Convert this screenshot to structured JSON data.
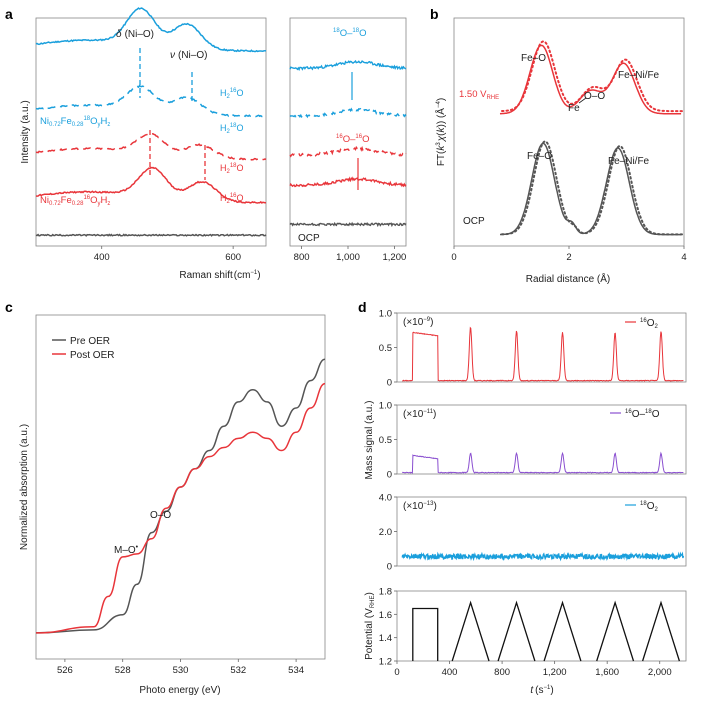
{
  "panels": {
    "a": "a",
    "b": "b",
    "c": "c",
    "d": "d"
  },
  "colors": {
    "blue": "#1a9fdc",
    "red": "#e8353a",
    "gray": "#555555",
    "purple": "#8a4fd0",
    "black": "#111111"
  },
  "panel_a": {
    "annot_delta_sym": "δ",
    "annot_delta": "(Ni–O)",
    "annot_nu_sym": "ν",
    "annot_nu": "(Ni–O)",
    "ylabel": "Intensity (a.u.)",
    "xlabel": "Raman shift",
    "xunit": "(cm",
    "xunit_exp": "−1",
    "xunit_close": ")",
    "ocp": "OCP"
  },
  "panel_b": {
    "annot_feo": "Fe–O",
    "annot_fe": "Fe",
    "annot_oo": "O–O",
    "annot_feni": "Fe–Ni/Fe",
    "potential_label": "1.50 V",
    "potential_sub": "RHE",
    "ocp": "OCP",
    "xlabel": "Radial distance (Å)"
  },
  "panel_c": {
    "legend": [
      "Pre OER",
      "Post OER"
    ],
    "annot_oo": "O–O",
    "annot_mo": "M–O",
    "annot_mo_sup": "•",
    "ylabel": "Normalized absorption (a.u.)",
    "xlabel": "Photo energy (eV)"
  },
  "panel_d": {
    "ylabel_mass": "Mass signal (a.u.)",
    "ylabel_potential": "Potential (V",
    "ylabel_potential_sub": "RHE",
    "ylabel_potential_close": ")",
    "xlabel_var": "t",
    "xlabel_unit": "(s",
    "xlabel_exp": "−1",
    "xlabel_close": ")"
  },
  "chart_data": [
    {
      "id": "a-raman",
      "type": "line",
      "xlabel": "Raman shift (cm−1)",
      "ylabel": "Intensity (a.u.)",
      "xlim": [
        300,
        650
      ],
      "xticks": [
        400,
        600
      ],
      "series": [
        {
          "name": "H2 16O on Ni0.72Fe0.28 18OyHz",
          "color": "#1a9fdc",
          "style": "solid",
          "offset": 0.9,
          "peaks": [
            [
              460,
              0.55
            ],
            [
              530,
              0.38
            ]
          ]
        },
        {
          "name": "H2 18O on Ni0.72Fe0.28 18OyHz",
          "color": "#1a9fdc",
          "style": "dashed",
          "offset": 0.6,
          "peaks": [
            [
              460,
              0.35
            ],
            [
              530,
              0.25
            ]
          ]
        },
        {
          "name": "H2 18O on Ni0.72Fe0.28 16OyHz",
          "color": "#e8353a",
          "style": "dashed",
          "offset": 0.4,
          "peaks": [
            [
              475,
              0.3
            ],
            [
              550,
              0.2
            ]
          ]
        },
        {
          "name": "H2 16O on Ni0.72Fe0.28 16OyHz",
          "color": "#e8353a",
          "style": "solid",
          "offset": 0.2,
          "peaks": [
            [
              478,
              0.45
            ],
            [
              553,
              0.3
            ]
          ]
        },
        {
          "name": "OCP",
          "color": "#555555",
          "style": "solid",
          "offset": 0.05,
          "peaks": []
        }
      ]
    },
    {
      "id": "a-raman-oo",
      "type": "line",
      "xlim": [
        750,
        1250
      ],
      "xticks": [
        800,
        1000,
        1200
      ],
      "xticklabels": [
        "800",
        "1,000",
        "1,200"
      ],
      "series": [
        {
          "name": "18O–18O (H2 16O)",
          "color": "#1a9fdc",
          "style": "solid",
          "offset": 0.82
        },
        {
          "name": "18O–18O (H2 18O)",
          "color": "#1a9fdc",
          "style": "dashed",
          "offset": 0.6
        },
        {
          "name": "16O–16O (H2 18O)",
          "color": "#e8353a",
          "style": "dashed",
          "offset": 0.42
        },
        {
          "name": "16O–16O (H2 16O)",
          "color": "#e8353a",
          "style": "solid",
          "offset": 0.28
        },
        {
          "name": "OCP",
          "color": "#555555",
          "style": "solid",
          "offset": 0.1
        }
      ]
    },
    {
      "id": "b-exafs",
      "type": "line",
      "xlabel": "Radial distance (Å)",
      "ylabel": "FT(k3χ(k)) (Å−4)",
      "xlim": [
        0,
        4
      ],
      "xticks": [
        0,
        2,
        4
      ],
      "series": [
        {
          "name": "1.50 V RHE",
          "color": "#e8353a",
          "offset": 0.58,
          "peaks": [
            [
              1.52,
              0.3
            ],
            [
              2.38,
              0.1
            ],
            [
              2.95,
              0.22
            ]
          ]
        },
        {
          "name": "OCP",
          "color": "#555555",
          "offset": 0.05,
          "peaks": [
            [
              1.55,
              0.4
            ],
            [
              2.85,
              0.38
            ]
          ]
        }
      ]
    },
    {
      "id": "c-xas",
      "type": "line",
      "xlabel": "Photo energy (eV)",
      "ylabel": "Normalized absorption (a.u.)",
      "xlim": [
        525,
        535
      ],
      "xticks": [
        526,
        528,
        530,
        532,
        534
      ],
      "legend": [
        "Pre OER",
        "Post OER"
      ],
      "series": [
        {
          "name": "Pre OER",
          "color": "#555555",
          "x": [
            525,
            527,
            528,
            528.5,
            529,
            529.5,
            530,
            530.5,
            531,
            531.5,
            532,
            532.5,
            533,
            533.5,
            534,
            534.5,
            535
          ],
          "y": [
            0.02,
            0.03,
            0.08,
            0.18,
            0.35,
            0.42,
            0.5,
            0.56,
            0.62,
            0.7,
            0.78,
            0.82,
            0.78,
            0.7,
            0.76,
            0.85,
            0.92
          ]
        },
        {
          "name": "Post OER",
          "color": "#e8353a",
          "x": [
            525,
            527,
            527.5,
            528,
            528.5,
            529,
            529.5,
            530,
            530.5,
            531,
            531.5,
            532,
            532.5,
            533,
            533.5,
            534,
            534.5,
            535
          ],
          "y": [
            0.02,
            0.04,
            0.14,
            0.27,
            0.28,
            0.33,
            0.43,
            0.5,
            0.56,
            0.6,
            0.63,
            0.66,
            0.68,
            0.66,
            0.62,
            0.68,
            0.76,
            0.84
          ]
        }
      ]
    },
    {
      "id": "d-ms-16o2",
      "type": "line",
      "ylabel": "Mass signal (a.u.)",
      "scale": "×10−9",
      "ylim": [
        0,
        1
      ],
      "yticks": [
        0,
        0.5,
        1.0
      ],
      "yticklabels": [
        "0",
        "0.5",
        "1.0"
      ],
      "legend": "16O2",
      "series": [
        {
          "name": "16O2",
          "color": "#e8353a",
          "baseline": 0.02,
          "plateau": [
            120,
            310,
            0.72
          ],
          "peaks": [
            [
              560,
              0.78
            ],
            [
              910,
              0.72
            ],
            [
              1260,
              0.7
            ],
            [
              1660,
              0.7
            ],
            [
              2010,
              0.72
            ]
          ]
        }
      ]
    },
    {
      "id": "d-ms-16o18o",
      "type": "line",
      "scale": "×10−11",
      "ylim": [
        0,
        1
      ],
      "yticks": [
        0,
        0.5,
        1.0
      ],
      "yticklabels": [
        "0",
        "0.5",
        "1.0"
      ],
      "legend": "16O–18O",
      "series": [
        {
          "name": "16O–18O",
          "color": "#8a4fd0",
          "baseline": 0.02,
          "plateau": [
            120,
            310,
            0.27
          ],
          "peaks": [
            [
              560,
              0.28
            ],
            [
              910,
              0.28
            ],
            [
              1260,
              0.28
            ],
            [
              1660,
              0.28
            ],
            [
              2010,
              0.28
            ]
          ]
        }
      ]
    },
    {
      "id": "d-ms-18o2",
      "type": "line",
      "scale": "×10−13",
      "ylim": [
        0,
        4
      ],
      "yticks": [
        0,
        2.0,
        4.0
      ],
      "yticklabels": [
        "0",
        "2.0",
        "4.0"
      ],
      "legend": "18O2",
      "series": [
        {
          "name": "18O2",
          "color": "#1a9fdc",
          "baseline": 0.55,
          "noise": 0.15
        }
      ]
    },
    {
      "id": "d-potential",
      "type": "line",
      "xlabel": "t (s−1)",
      "ylabel": "Potential (VRHE)",
      "xlim": [
        0,
        2200
      ],
      "xticks": [
        0,
        400,
        800,
        1200,
        1600,
        2000
      ],
      "xticklabels": [
        "0",
        "400",
        "800",
        "1,200",
        "1,600",
        "2,000"
      ],
      "ylim": [
        1.2,
        1.8
      ],
      "yticks": [
        1.2,
        1.4,
        1.6,
        1.8
      ],
      "series": [
        {
          "name": "Potential",
          "color": "#111111",
          "hold": [
            120,
            310,
            1.65
          ],
          "triangles": [
            [
              420,
              560,
              700,
              1.7
            ],
            [
              770,
              910,
              1050,
              1.7
            ],
            [
              1120,
              1260,
              1400,
              1.7
            ],
            [
              1520,
              1660,
              1800,
              1.7
            ],
            [
              1870,
              2010,
              2150,
              1.7
            ]
          ],
          "base": 1.2
        }
      ]
    }
  ]
}
